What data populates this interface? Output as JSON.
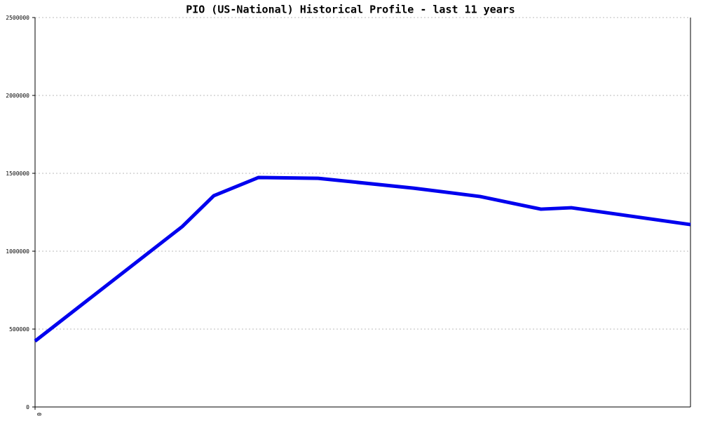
{
  "chart_data": {
    "type": "line",
    "title": "PIO (US-National) Historical Profile - last 11 years",
    "x": [
      0,
      2.47,
      3.0,
      3.75,
      4.75,
      6.35,
      7.47,
      8.49,
      9.0,
      11
    ],
    "series": [
      {
        "color": "#0000ee",
        "values": [
          423000,
          1158000,
          1356000,
          1473000,
          1468000,
          1405000,
          1351000,
          1270000,
          1279000,
          1171000
        ]
      }
    ],
    "xlim": [
      0,
      11
    ],
    "xticks": [
      0
    ],
    "ylim": [
      0,
      2500000
    ],
    "yticks": [
      0,
      500000,
      1000000,
      1500000,
      2000000,
      2500000
    ],
    "grid": true
  }
}
